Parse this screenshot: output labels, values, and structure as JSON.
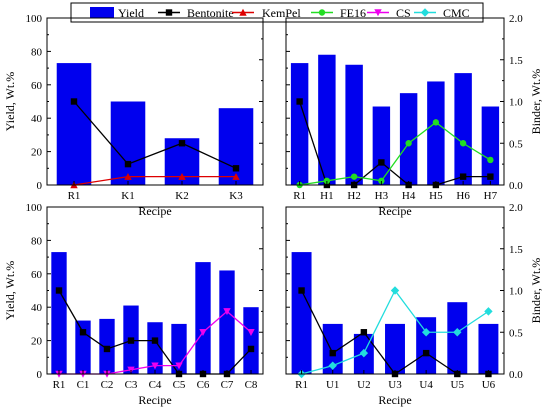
{
  "legend": [
    {
      "name": "Yield",
      "type": "bar",
      "color": "#0000ee"
    },
    {
      "name": "Bentonite",
      "type": "line",
      "color": "#000000",
      "marker": "square"
    },
    {
      "name": "KemPel",
      "type": "line",
      "color": "#dd0000",
      "marker": "triangle"
    },
    {
      "name": "FE16",
      "type": "line",
      "color": "#22dd22",
      "marker": "circle"
    },
    {
      "name": "CS",
      "type": "line",
      "color": "#ee00ee",
      "marker": "triangle-down"
    },
    {
      "name": "CMC",
      "type": "line",
      "color": "#22dddd",
      "marker": "diamond"
    }
  ],
  "chart_data": [
    {
      "type": "bar+line",
      "categories": [
        "R1",
        "K1",
        "K2",
        "K3"
      ],
      "bar": {
        "name": "Yield",
        "values": [
          73,
          50,
          28,
          46
        ]
      },
      "series": [
        {
          "name": "Bentonite",
          "values": [
            1.0,
            0.25,
            0.5,
            0.2
          ]
        },
        {
          "name": "KemPel",
          "values": [
            0,
            0.1,
            0.1,
            0.1
          ]
        }
      ],
      "xlabel": "Recipe",
      "ylabel_left": "Yield, Wt.%",
      "ylabel_right": "",
      "ylim_left": [
        0,
        100
      ],
      "ylim_right": [
        0,
        2.0
      ],
      "yticks_left": [
        "0",
        "20",
        "40",
        "60",
        "80",
        "100"
      ],
      "yticks_right": [
        "",
        "",
        "",
        "",
        ""
      ],
      "show_left_ticks": true,
      "show_right_ticks": false
    },
    {
      "type": "bar+line",
      "categories": [
        "R1",
        "H1",
        "H2",
        "H3",
        "H4",
        "H5",
        "H6",
        "H7"
      ],
      "bar": {
        "name": "Yield",
        "values": [
          73,
          78,
          72,
          47,
          55,
          62,
          67,
          47
        ]
      },
      "series": [
        {
          "name": "Bentonite",
          "values": [
            1.0,
            0,
            0,
            0.27,
            0,
            0,
            0.1,
            0.1
          ]
        },
        {
          "name": "FE16",
          "values": [
            0,
            0.05,
            0.1,
            0.05,
            0.5,
            0.75,
            0.5,
            0.3
          ]
        }
      ],
      "xlabel": "Recipe",
      "ylabel_left": "",
      "ylabel_right": "Binder, Wt.%",
      "ylim_left": [
        0,
        100
      ],
      "ylim_right": [
        0,
        2.0
      ],
      "yticks_left": [
        "",
        "",
        "",
        "",
        "",
        ""
      ],
      "yticks_right": [
        "0.0",
        "0.5",
        "1.0",
        "1.5",
        "2.0"
      ],
      "show_left_ticks": false,
      "show_right_ticks": true
    },
    {
      "type": "bar+line",
      "categories": [
        "R1",
        "C1",
        "C2",
        "C3",
        "C4",
        "C5",
        "C6",
        "C7",
        "C8"
      ],
      "bar": {
        "name": "Yield",
        "values": [
          73,
          32,
          33,
          41,
          31,
          30,
          67,
          62,
          40
        ]
      },
      "series": [
        {
          "name": "Bentonite",
          "values": [
            1.0,
            0.5,
            0.3,
            0.4,
            0.4,
            0,
            0,
            0,
            0.3
          ]
        },
        {
          "name": "CS",
          "values": [
            0,
            0,
            0,
            0.05,
            0.1,
            0.1,
            0.5,
            0.75,
            0.5
          ]
        }
      ],
      "xlabel": "Recipe",
      "ylabel_left": "Yield, Wt.%",
      "ylabel_right": "",
      "ylim_left": [
        0,
        100
      ],
      "ylim_right": [
        0,
        2.0
      ],
      "yticks_left": [
        "0",
        "20",
        "40",
        "60",
        "80",
        "100"
      ],
      "yticks_right": [
        "",
        "",
        "",
        "",
        ""
      ],
      "show_left_ticks": true,
      "show_right_ticks": false
    },
    {
      "type": "bar+line",
      "categories": [
        "R1",
        "U1",
        "U2",
        "U3",
        "U4",
        "U5",
        "U6"
      ],
      "bar": {
        "name": "Yield",
        "values": [
          73,
          30,
          24,
          30,
          34,
          43,
          30
        ]
      },
      "series": [
        {
          "name": "Bentonite",
          "values": [
            1.0,
            0.25,
            0.5,
            0,
            0.25,
            0,
            0
          ]
        },
        {
          "name": "CMC",
          "values": [
            0,
            0.1,
            0.25,
            1.0,
            0.5,
            0.5,
            0.75
          ]
        }
      ],
      "xlabel": "Recipe",
      "ylabel_left": "",
      "ylabel_right": "Binder, Wt.%",
      "ylim_left": [
        0,
        100
      ],
      "ylim_right": [
        0,
        2.0
      ],
      "yticks_left": [
        "",
        "",
        "",
        "",
        "",
        ""
      ],
      "yticks_right": [
        "0.0",
        "0.5",
        "1.0",
        "1.5",
        "2.0"
      ],
      "show_left_ticks": false,
      "show_right_ticks": true
    }
  ]
}
